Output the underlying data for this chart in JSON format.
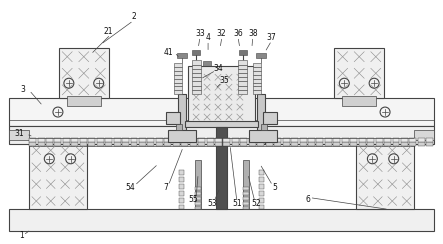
{
  "bg_color": "#ffffff",
  "line_color": "#444444",
  "label_color": "#111111",
  "fig_width": 4.43,
  "fig_height": 2.44,
  "dpi": 100
}
